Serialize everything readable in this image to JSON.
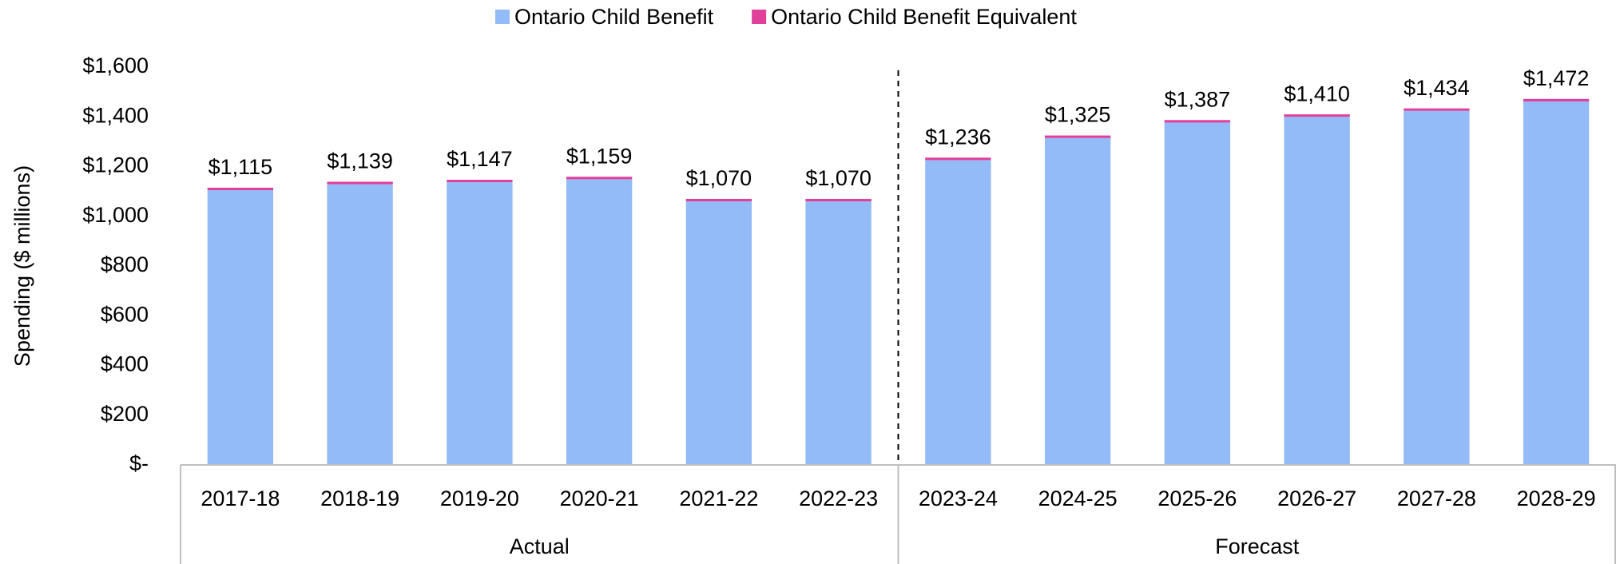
{
  "chart_data": {
    "type": "stacked_bar",
    "y_axis_label": "Spending ($ millions)",
    "categories": [
      "2017-18",
      "2018-19",
      "2019-20",
      "2020-21",
      "2021-22",
      "2022-23",
      "2023-24",
      "2024-25",
      "2025-26",
      "2026-27",
      "2027-28",
      "2028-29"
    ],
    "groups": [
      {
        "label": "Actual",
        "count": 6
      },
      {
        "label": "Forecast",
        "count": 6
      }
    ],
    "series": [
      {
        "name": "Ontario Child Benefit",
        "color": "#93bbf7",
        "values": [
          1105,
          1129,
          1137,
          1149,
          1060,
          1060,
          1226,
          1315,
          1377,
          1400,
          1424,
          1462
        ]
      },
      {
        "name": "Ontario Child Benefit Equivalent",
        "color": "#e0409a",
        "values": [
          10,
          10,
          10,
          10,
          10,
          10,
          10,
          10,
          10,
          10,
          10,
          10
        ]
      }
    ],
    "totals": [
      1115,
      1139,
      1147,
      1159,
      1070,
      1070,
      1236,
      1325,
      1387,
      1410,
      1434,
      1472
    ],
    "total_labels": [
      "$1,115",
      "$1,139",
      "$1,147",
      "$1,159",
      "$1,070",
      "$1,070",
      "$1,236",
      "$1,325",
      "$1,387",
      "$1,410",
      "$1,434",
      "$1,472"
    ],
    "ylim": [
      0,
      1600
    ],
    "yticks": [
      {
        "value": 0,
        "label": "$-"
      },
      {
        "value": 200,
        "label": "$200"
      },
      {
        "value": 400,
        "label": "$400"
      },
      {
        "value": 600,
        "label": "$600"
      },
      {
        "value": 800,
        "label": "$800"
      },
      {
        "value": 1000,
        "label": "$1,000"
      },
      {
        "value": 1200,
        "label": "$1,200"
      },
      {
        "value": 1400,
        "label": "$1,400"
      },
      {
        "value": 1600,
        "label": "$1,600"
      }
    ],
    "legend": "top"
  }
}
